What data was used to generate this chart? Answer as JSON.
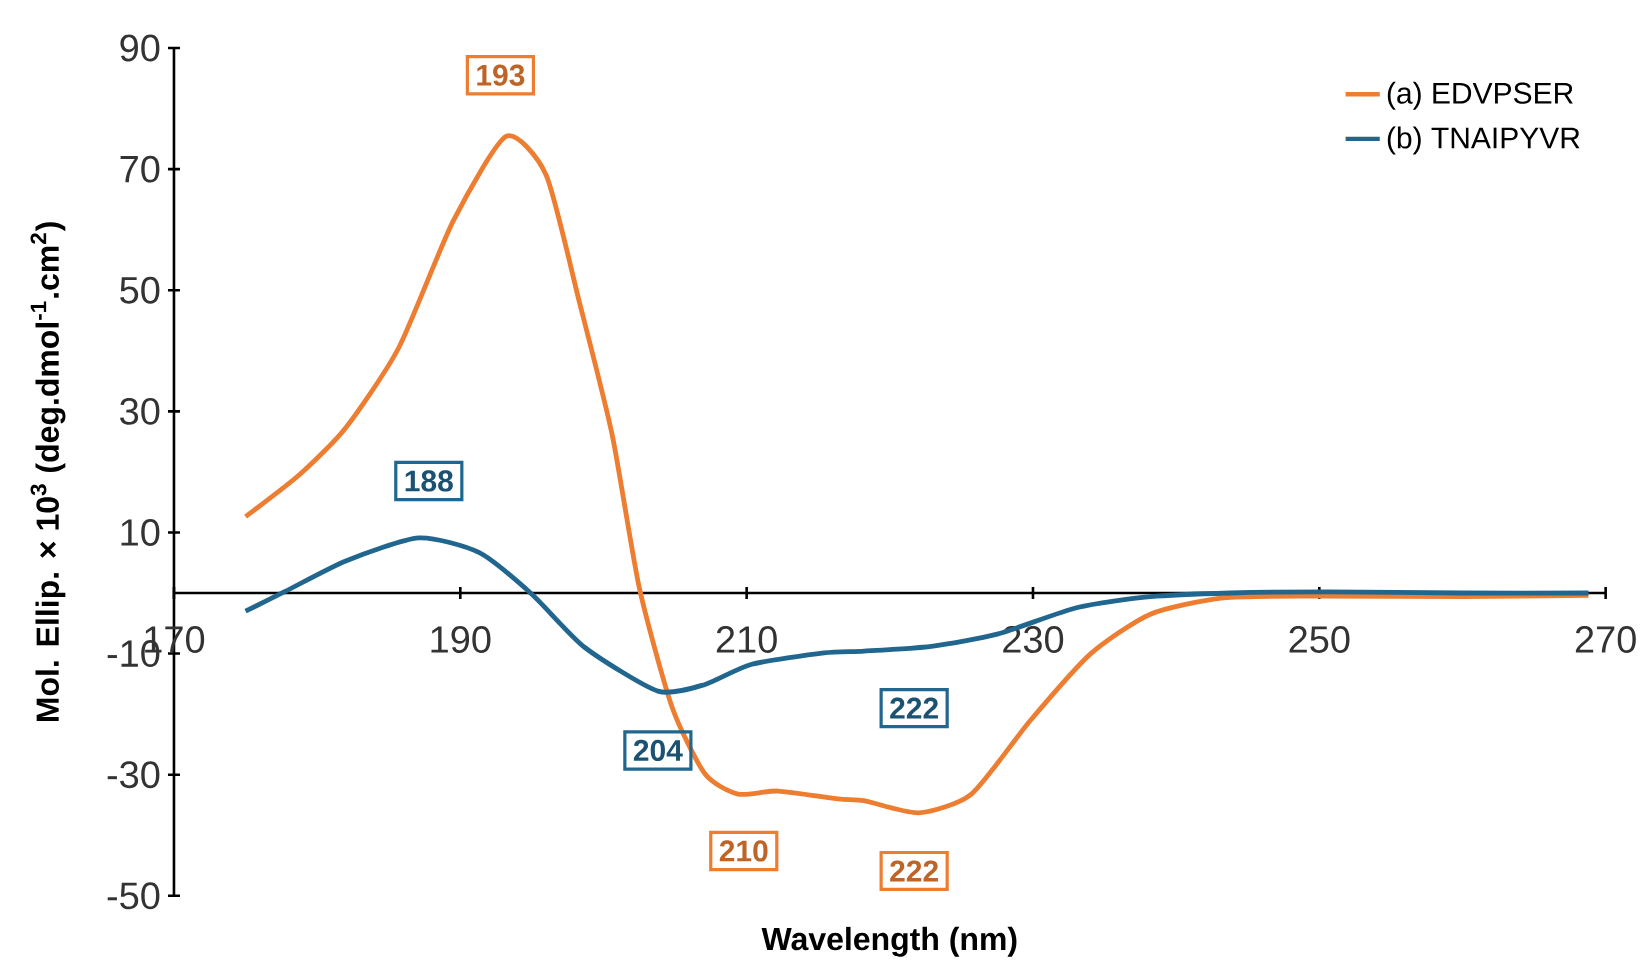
{
  "chart_data": {
    "type": "line",
    "xlabel": "Wavelength (nm)",
    "ylabel": "Mol. Ellip. × 10$^{3}$ (deg.dmol$^{-1}$.cm$^{2}$)",
    "xlim": [
      170,
      270
    ],
    "xticks": [
      170,
      190,
      210,
      230,
      250,
      270
    ],
    "ylim": [
      -50,
      90
    ],
    "yticks": [
      -50,
      -30,
      -10,
      10,
      30,
      50,
      70,
      90
    ],
    "legend": "top right",
    "marker": "none",
    "annotations": [
      "193",
      "188",
      "204",
      "210",
      "222",
      "222"
    ],
    "series": [
      {
        "name": "(a) EDVPSER",
        "color": "#ed7d31",
        "x": [
          175,
          178.8,
          182,
          185.7,
          189.5,
          193.2,
          196,
          198.3,
          200.6,
          202.5,
          204.8,
          207.1,
          209.4,
          212.2,
          216.4,
          218.2,
          222,
          225.7,
          229.8,
          234,
          238.2,
          243.3,
          249.8,
          260,
          268.8
        ],
        "values": [
          12.6,
          19.6,
          27.3,
          40.5,
          61.4,
          75.4,
          69,
          48.2,
          26.2,
          0.9,
          -18.9,
          -29.9,
          -33.2,
          -32.7,
          -34,
          -34.3,
          -36.3,
          -33.2,
          -21.1,
          -10.1,
          -3.5,
          -0.8,
          -0.5,
          -0.6,
          -0.4
        ]
      },
      {
        "name": "(b) TNAIPYVR",
        "color": "#21668f",
        "x": [
          175,
          177.8,
          182,
          187.1,
          191.3,
          195,
          198.7,
          203.8,
          207.1,
          210.3,
          215.4,
          218.2,
          222.9,
          227.5,
          233.1,
          238.2,
          243.8,
          250.6,
          260,
          268.8
        ],
        "values": [
          -3,
          0.3,
          5.3,
          9.1,
          6.7,
          -0.2,
          -9,
          -16.2,
          -15.1,
          -11.8,
          -9.9,
          -9.6,
          -8.8,
          -6.8,
          -2.4,
          -0.6,
          0,
          0.2,
          0,
          0
        ]
      }
    ]
  }
}
